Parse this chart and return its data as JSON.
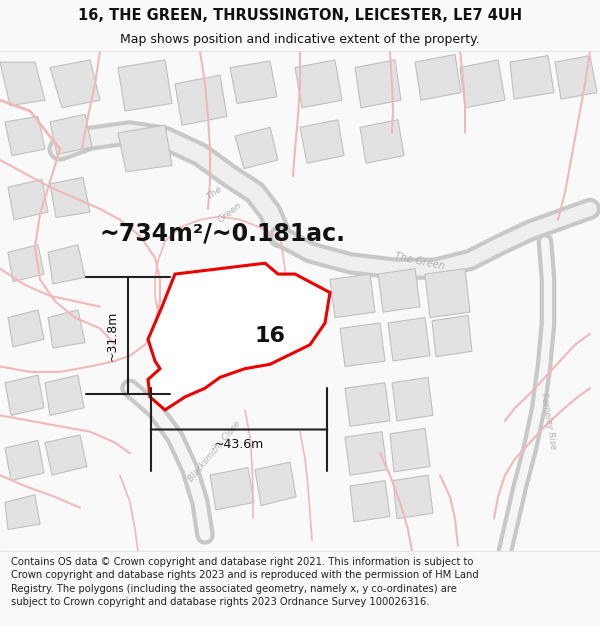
{
  "title_line1": "16, THE GREEN, THRUSSINGTON, LEICESTER, LE7 4UH",
  "title_line2": "Map shows position and indicative extent of the property.",
  "area_text": "~734m²/~0.181ac.",
  "number_label": "16",
  "dim_vertical": "~31.8m",
  "dim_horizontal": "~43.6m",
  "footer_text": "Contains OS data © Crown copyright and database right 2021. This information is subject to Crown copyright and database rights 2023 and is reproduced with the permission of HM Land Registry. The polygons (including the associated geometry, namely x, y co-ordinates) are subject to Crown copyright and database rights 2023 Ordnance Survey 100026316.",
  "bg_color": "#f9f9f9",
  "map_bg": "#ffffff",
  "road_pink": "#f2b8b8",
  "road_gray": "#c8c8c8",
  "building_fill": "#e2e2e2",
  "building_stroke": "#c0c0c0",
  "highlight_stroke": "#ee0000",
  "road_label_color": "#b0b0b0",
  "title_fontsize": 10.5,
  "subtitle_fontsize": 9,
  "area_fontsize": 17,
  "number_fontsize": 16,
  "dim_fontsize": 9,
  "footer_fontsize": 7.2
}
